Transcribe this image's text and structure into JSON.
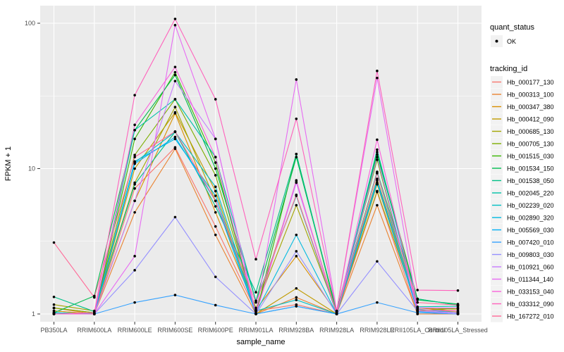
{
  "chart_data": {
    "type": "line",
    "title": "",
    "xlabel": "sample_name",
    "ylabel": "FPKM + 1",
    "y_scale": "log10",
    "y_ticks": [
      1,
      10,
      100
    ],
    "y_minor_gridlines": [
      3.1623,
      31.623
    ],
    "ylim": [
      0.95,
      132
    ],
    "grid": "on",
    "legend_position": "right",
    "categories": [
      "PB350LA",
      "RRIM600LA",
      "RRIM600LE",
      "RRIM600SE",
      "RRIM600PE",
      "RRIM901LA",
      "RRIM928BA",
      "RRIM928LA",
      "RRIM928LE",
      "RRII105LA_Control",
      "RRII105LA_Stressed"
    ],
    "legend": {
      "quant_status_title": "quant_status",
      "quant_status_items": [
        {
          "label": "OK",
          "shape": "point"
        }
      ],
      "tracking_id_title": "tracking_id"
    },
    "colors": {
      "panel_bg": "#ebebeb",
      "legend_key_bg": "#f2f2f2",
      "gridline": "#ffffff",
      "point": "#000000",
      "tick_text": "#4d4d4d",
      "axis_title_text": "#000000"
    },
    "series": [
      {
        "name": "Hb_000177_130",
        "color": "#F8766D",
        "values": [
          1.05,
          1.0,
          7.3,
          14.0,
          4.0,
          1.05,
          1.16,
          1.0,
          6.9,
          1.0,
          1.0
        ]
      },
      {
        "name": "Hb_000313_100",
        "color": "#EA8331",
        "values": [
          1.1,
          1.0,
          5.0,
          13.7,
          3.5,
          1.0,
          1.3,
          1.0,
          5.6,
          1.0,
          1.0
        ]
      },
      {
        "name": "Hb_000347_380",
        "color": "#D89000",
        "values": [
          1.1,
          1.02,
          6.0,
          24.0,
          5.0,
          1.07,
          2.5,
          1.02,
          8.5,
          1.1,
          1.05
        ]
      },
      {
        "name": "Hb_000412_090",
        "color": "#C09B00",
        "values": [
          1.05,
          1.0,
          10.0,
          24.4,
          7.0,
          1.0,
          1.5,
          1.0,
          7.8,
          1.07,
          1.03
        ]
      },
      {
        "name": "Hb_000685_130",
        "color": "#A3A500",
        "values": [
          1.16,
          1.05,
          8.0,
          26.5,
          6.0,
          1.1,
          5.6,
          1.03,
          7.0,
          1.1,
          1.08
        ]
      },
      {
        "name": "Hb_000705_130",
        "color": "#7CAE00",
        "values": [
          1.1,
          1.02,
          12.4,
          30.0,
          9.0,
          1.05,
          8.1,
          1.02,
          11.5,
          1.05,
          1.1
        ]
      },
      {
        "name": "Hb_001515_030",
        "color": "#39B600",
        "values": [
          1.02,
          1.0,
          16.0,
          46.0,
          11.0,
          1.0,
          12.6,
          1.0,
          13.0,
          1.27,
          1.15
        ]
      },
      {
        "name": "Hb_001534_150",
        "color": "#00BB4E",
        "values": [
          1.02,
          1.33,
          18.4,
          44.0,
          10.0,
          1.23,
          12.0,
          1.05,
          12.5,
          1.25,
          1.17
        ]
      },
      {
        "name": "Hb_001538_050",
        "color": "#00C087",
        "values": [
          1.31,
          1.04,
          7.8,
          17.9,
          5.5,
          1.41,
          12.6,
          1.04,
          9.5,
          1.27,
          1.15
        ]
      },
      {
        "name": "Hb_002045_220",
        "color": "#00C1A9",
        "values": [
          1.0,
          1.02,
          18.4,
          30.0,
          12.0,
          1.23,
          6.5,
          1.0,
          13.5,
          1.12,
          1.13
        ]
      },
      {
        "name": "Hb_002239_020",
        "color": "#00BFC4",
        "values": [
          1.0,
          1.0,
          11.0,
          17.9,
          7.5,
          1.05,
          1.25,
          1.0,
          9.3,
          1.08,
          1.02
        ]
      },
      {
        "name": "Hb_002890_320",
        "color": "#00BAE0",
        "values": [
          1.02,
          1.0,
          11.2,
          16.0,
          6.5,
          1.02,
          3.5,
          1.0,
          8.0,
          1.05,
          1.0
        ]
      },
      {
        "name": "Hb_005569_030",
        "color": "#00B0F6",
        "values": [
          1.0,
          1.0,
          10.8,
          16.5,
          6.0,
          1.0,
          1.13,
          1.0,
          8.3,
          1.04,
          1.0
        ]
      },
      {
        "name": "Hb_007420_010",
        "color": "#35A2FF",
        "values": [
          1.0,
          1.0,
          1.2,
          1.35,
          1.15,
          1.0,
          1.13,
          1.0,
          1.2,
          1.02,
          1.0
        ]
      },
      {
        "name": "Hb_009803_030",
        "color": "#9590FF",
        "values": [
          1.0,
          1.0,
          2.0,
          4.64,
          1.8,
          1.0,
          2.7,
          1.0,
          2.3,
          1.05,
          1.0
        ]
      },
      {
        "name": "Hb_010921_060",
        "color": "#C77CFF",
        "values": [
          1.0,
          1.0,
          6.0,
          40.0,
          16.0,
          1.0,
          8.0,
          1.0,
          12.0,
          1.05,
          1.02
        ]
      },
      {
        "name": "Hb_011344_140",
        "color": "#E76BF3",
        "values": [
          1.0,
          1.0,
          2.5,
          97.0,
          16.0,
          1.0,
          41.0,
          1.05,
          42.0,
          1.1,
          1.1
        ]
      },
      {
        "name": "Hb_033153_040",
        "color": "#FA62DB",
        "values": [
          1.0,
          1.0,
          20.0,
          50.0,
          12.0,
          1.0,
          8.3,
          1.0,
          15.8,
          1.07,
          1.05
        ]
      },
      {
        "name": "Hb_033312_090",
        "color": "#FF62BC",
        "values": [
          1.0,
          1.02,
          32.0,
          107.0,
          30.0,
          2.38,
          22.0,
          1.05,
          47.0,
          1.46,
          1.45
        ]
      },
      {
        "name": "Hb_167272_010",
        "color": "#FF6A98",
        "values": [
          3.1,
          1.3,
          12.0,
          18.0,
          6.0,
          1.2,
          6.6,
          1.02,
          9.3,
          1.2,
          1.15
        ]
      }
    ]
  }
}
